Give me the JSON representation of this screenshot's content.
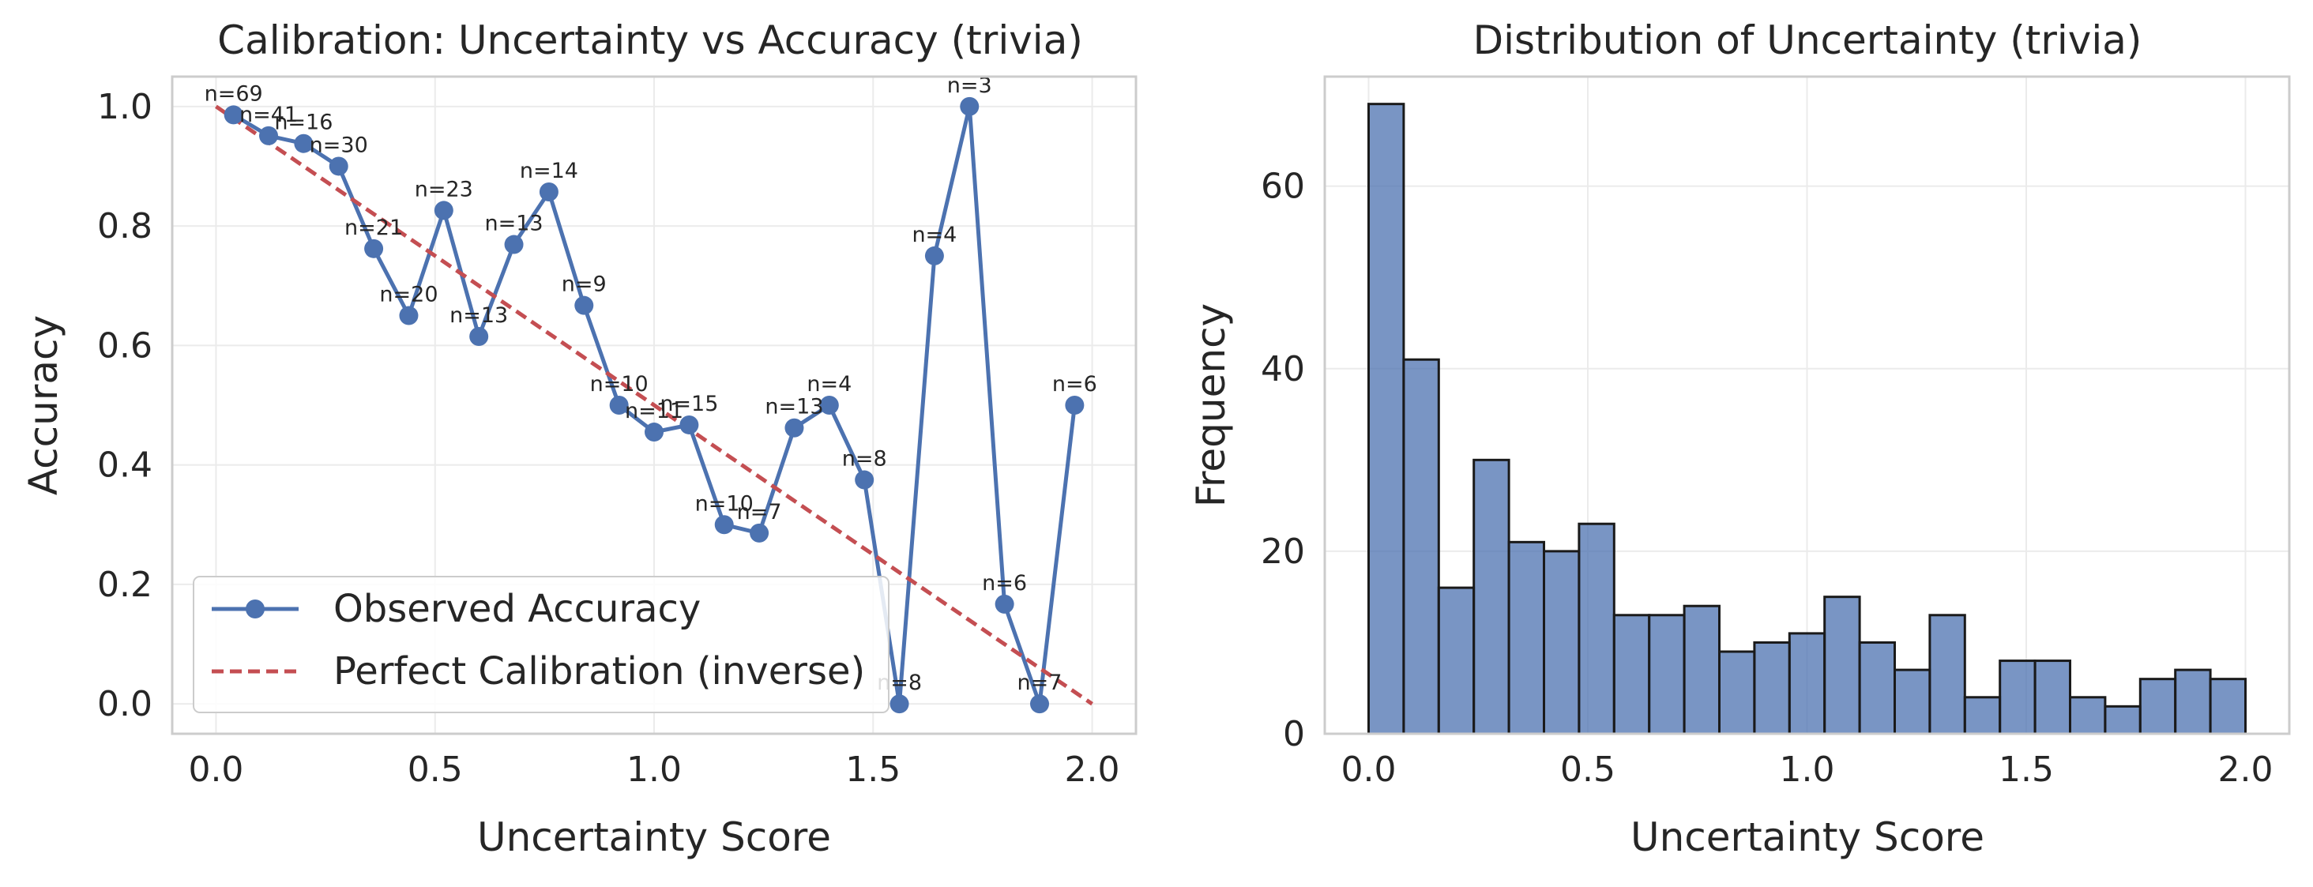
{
  "chart_data": [
    {
      "type": "line",
      "title": "Calibration: Uncertainty vs Accuracy (trivia)",
      "xlabel": "Uncertainty Score",
      "ylabel": "Accuracy",
      "xlim": [
        -0.1,
        2.1
      ],
      "ylim": [
        -0.05,
        1.05
      ],
      "xticks": [
        "0.0",
        "0.5",
        "1.0",
        "1.5",
        "2.0"
      ],
      "yticks": [
        "0.0",
        "0.2",
        "0.4",
        "0.6",
        "0.8",
        "1.0"
      ],
      "grid": true,
      "legend_position": "lower-left",
      "series": [
        {
          "name": "Observed Accuracy",
          "color": "#4c72b0",
          "style": "solid-marker",
          "x": [
            0.04,
            0.12,
            0.2,
            0.28,
            0.36,
            0.44,
            0.52,
            0.6,
            0.68,
            0.76,
            0.84,
            0.92,
            1.0,
            1.08,
            1.16,
            1.24,
            1.32,
            1.4,
            1.48,
            1.56,
            1.64,
            1.72,
            1.8,
            1.88,
            1.96
          ],
          "y": [
            0.986,
            0.951,
            0.938,
            0.9,
            0.762,
            0.65,
            0.826,
            0.615,
            0.769,
            0.857,
            0.667,
            0.5,
            0.455,
            0.467,
            0.3,
            0.286,
            0.462,
            0.5,
            0.375,
            0.0,
            0.75,
            1.0,
            0.167,
            0.0,
            0.5
          ],
          "labels": [
            "n=69",
            "n=41",
            "n=16",
            "n=30",
            "n=21",
            "n=20",
            "n=23",
            "n=13",
            "n=13",
            "n=14",
            "n=9",
            "n=10",
            "n=11",
            "n=15",
            "n=10",
            "n=7",
            "n=13",
            "n=4",
            "n=8",
            "n=8",
            "n=4",
            "n=3",
            "n=6",
            "n=7",
            "n=6"
          ]
        },
        {
          "name": "Perfect Calibration (inverse)",
          "color": "#c44e52",
          "style": "dashed",
          "x": [
            0.0,
            2.0
          ],
          "y": [
            1.0,
            0.0
          ]
        }
      ]
    },
    {
      "type": "bar",
      "title": "Distribution of Uncertainty (trivia)",
      "xlabel": "Uncertainty Score",
      "ylabel": "Frequency",
      "xlim": [
        -0.1,
        2.1
      ],
      "ylim": [
        0,
        72
      ],
      "xticks": [
        "0.0",
        "0.5",
        "1.0",
        "1.5",
        "2.0"
      ],
      "yticks": [
        "0",
        "20",
        "40",
        "60"
      ],
      "grid": true,
      "color": "#4c72b0",
      "edge_color": "#1a1a1a",
      "bin_edges": [
        0.0,
        0.08,
        0.16,
        0.24,
        0.32,
        0.4,
        0.48,
        0.56,
        0.64,
        0.72,
        0.8,
        0.88,
        0.96,
        1.04,
        1.12,
        1.2,
        1.28,
        1.36,
        1.44,
        1.52,
        1.6,
        1.68,
        1.76,
        1.84,
        1.92,
        2.0
      ],
      "values": [
        69,
        41,
        16,
        30,
        21,
        20,
        23,
        13,
        13,
        14,
        9,
        10,
        11,
        15,
        10,
        7,
        13,
        4,
        8,
        8,
        4,
        3,
        6,
        7,
        6
      ]
    }
  ]
}
